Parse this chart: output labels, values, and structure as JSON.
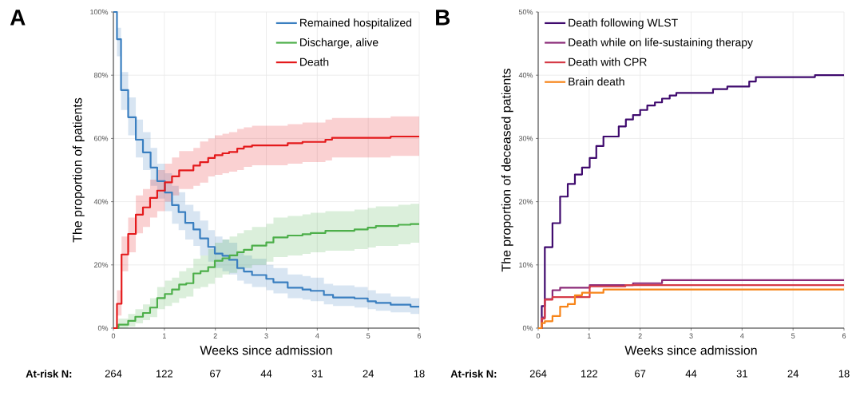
{
  "chart_data": [
    {
      "type": "step",
      "title": "A",
      "xlabel": "Weeks since admission",
      "ylabel": "The proportion of patients",
      "xlim": [
        0,
        6
      ],
      "ylim": [
        0,
        100
      ],
      "xticks": [
        0,
        1,
        2,
        3,
        4,
        5,
        6
      ],
      "yticks": [
        {
          "value": 0,
          "label": "0%"
        },
        {
          "value": 20,
          "label": "20%"
        },
        {
          "value": 40,
          "label": "40%"
        },
        {
          "value": 60,
          "label": "60%"
        },
        {
          "value": 80,
          "label": "80%"
        },
        {
          "value": 100,
          "label": "100%"
        }
      ],
      "grid": true,
      "legend": "top right",
      "marker": "none",
      "line_style": "solid",
      "series": [
        {
          "name": "Remained hospitalized",
          "color": "#3a7fc0",
          "x": [
            0,
            0.07,
            0.15,
            0.29,
            0.44,
            0.58,
            0.73,
            0.86,
            1.01,
            1.15,
            1.28,
            1.41,
            1.57,
            1.7,
            1.86,
            1.99,
            2.14,
            2.27,
            2.43,
            2.56,
            2.72,
            3.0,
            3.14,
            3.42,
            3.71,
            3.87,
            4.13,
            4.31,
            4.73,
            4.99,
            5.15,
            5.44,
            5.83,
            6
          ],
          "values": [
            100,
            91.4,
            75.3,
            66.7,
            59.6,
            55.6,
            50.8,
            46.5,
            42.9,
            38.9,
            36.7,
            33.3,
            31.2,
            28.4,
            25.7,
            23.6,
            22.9,
            21.6,
            19.0,
            17.9,
            16.8,
            15.6,
            14.5,
            12.8,
            12.2,
            11.8,
            10.5,
            9.7,
            9.4,
            8.5,
            8.0,
            7.4,
            6.8,
            6.8
          ],
          "lower": [
            100,
            86,
            69,
            61,
            54,
            50,
            45,
            41,
            37,
            33,
            31,
            28,
            26,
            23,
            21,
            19,
            18,
            17,
            15,
            14,
            13,
            12,
            11,
            9.5,
            9,
            8.5,
            7.5,
            7,
            6.5,
            6,
            5.5,
            5,
            4.5,
            4.5
          ],
          "upper": [
            100,
            95,
            81,
            73,
            66,
            62,
            57,
            52,
            49,
            45,
            43,
            39,
            37,
            34,
            31,
            29,
            28,
            27,
            24,
            23,
            22,
            20,
            19,
            17,
            16.5,
            16,
            14,
            13.5,
            13,
            12,
            11,
            10,
            9.5,
            9.5
          ]
        },
        {
          "name": "Discharge, alive",
          "color": "#4daf4a",
          "x": [
            0,
            0.1,
            0.29,
            0.43,
            0.58,
            0.72,
            0.86,
            1.01,
            1.15,
            1.29,
            1.43,
            1.57,
            1.71,
            1.86,
            1.99,
            2.14,
            2.28,
            2.43,
            2.56,
            2.72,
            3.0,
            3.14,
            3.42,
            3.71,
            3.87,
            4.16,
            4.73,
            4.99,
            5.15,
            5.59,
            5.83,
            6
          ],
          "values": [
            0,
            1.1,
            2.3,
            3.6,
            4.8,
            6.5,
            9.5,
            10.8,
            12.2,
            13.8,
            14.2,
            17.3,
            18.0,
            19.3,
            21.3,
            22.1,
            23.0,
            24.0,
            24.8,
            26.1,
            27.1,
            28.7,
            29.3,
            29.7,
            30.1,
            30.8,
            31.2,
            31.8,
            32.3,
            32.7,
            32.9,
            32.9
          ],
          "lower": [
            0,
            0,
            0.5,
            1.5,
            2.5,
            3.5,
            6,
            7,
            8,
            9.5,
            10,
            12.5,
            13,
            14,
            16,
            17,
            17.5,
            18.5,
            19,
            20,
            21,
            22.5,
            23,
            23.5,
            24,
            24.5,
            25,
            25.5,
            26,
            26.5,
            27,
            27
          ],
          "upper": [
            0,
            3,
            4.5,
            6,
            7.5,
            9.5,
            13,
            15,
            16,
            18,
            19,
            22,
            23,
            25,
            27,
            28,
            29,
            30,
            31,
            32,
            33,
            35,
            35.5,
            36,
            36.5,
            37,
            37.5,
            38,
            38.5,
            39,
            39.3,
            39.3
          ]
        },
        {
          "name": "Death",
          "color": "#e41a1c",
          "x": [
            0,
            0.07,
            0.16,
            0.29,
            0.44,
            0.58,
            0.72,
            0.86,
            1.01,
            1.15,
            1.29,
            1.57,
            1.7,
            1.86,
            1.99,
            2.14,
            2.27,
            2.43,
            2.56,
            2.72,
            3.42,
            3.71,
            4.16,
            4.29,
            5.44,
            6
          ],
          "values": [
            0,
            7.7,
            23.3,
            29.8,
            35.9,
            38.2,
            41.2,
            43.5,
            46.1,
            48.0,
            49.9,
            51.4,
            52.5,
            53.8,
            54.7,
            55.3,
            55.7,
            56.8,
            57.4,
            57.8,
            58.5,
            58.9,
            59.6,
            60.2,
            60.6,
            60.6
          ],
          "lower": [
            0,
            4,
            18,
            24,
            30,
            32,
            35,
            37,
            40,
            42,
            44,
            45,
            46,
            48,
            48.5,
            49,
            49.5,
            50,
            51,
            51.5,
            52,
            52.5,
            53,
            54,
            54.5,
            54.5
          ],
          "upper": [
            0,
            12,
            29,
            35,
            42,
            44,
            47,
            50,
            52,
            54,
            56,
            57,
            59,
            60,
            61,
            61.5,
            62,
            63,
            63.5,
            64,
            64.5,
            65,
            66,
            66.5,
            67,
            67
          ]
        }
      ],
      "annotations": [
        "At-risk N:",
        "264",
        "122",
        "67",
        "44",
        "31",
        "24",
        "18"
      ]
    },
    {
      "type": "step",
      "title": "B",
      "xlabel": "Weeks since admission",
      "ylabel": "The proportion of deceased patients",
      "xlim": [
        0,
        6
      ],
      "ylim": [
        0,
        50
      ],
      "xticks": [
        0,
        1,
        2,
        3,
        4,
        5,
        6
      ],
      "yticks": [
        {
          "value": 0,
          "label": "0%"
        },
        {
          "value": 10,
          "label": "10%"
        },
        {
          "value": 20,
          "label": "20%"
        },
        {
          "value": 30,
          "label": "30%"
        },
        {
          "value": 40,
          "label": "40%"
        },
        {
          "value": 50,
          "label": "50%"
        }
      ],
      "grid": true,
      "legend": "top left",
      "marker": "none",
      "line_style": "solid",
      "series": [
        {
          "name": "Death following WLST",
          "color": "#3f0a6e",
          "x": [
            0,
            0.07,
            0.13,
            0.28,
            0.43,
            0.58,
            0.72,
            0.86,
            1.01,
            1.14,
            1.28,
            1.58,
            1.72,
            1.86,
            2.0,
            2.14,
            2.29,
            2.43,
            2.58,
            2.71,
            3.43,
            3.71,
            4.14,
            4.27,
            5.43,
            6
          ],
          "values": [
            0,
            3.5,
            12.8,
            16.6,
            20.8,
            22.8,
            24.3,
            25.4,
            26.9,
            28.8,
            30.3,
            31.9,
            33.0,
            33.7,
            34.5,
            35.2,
            35.7,
            36.3,
            36.8,
            37.2,
            37.8,
            38.2,
            39.0,
            39.7,
            40.0,
            40.0
          ]
        },
        {
          "name": "Death while on life-sustaining therapy",
          "color": "#8b2a78",
          "x": [
            0,
            0.07,
            0.13,
            0.28,
            0.43,
            1.01,
            1.86,
            2.43,
            6
          ],
          "values": [
            0,
            1.7,
            4.6,
            6.0,
            6.4,
            6.8,
            7.1,
            7.6,
            7.6
          ]
        },
        {
          "name": "Death with CPR",
          "color": "#d63c48",
          "x": [
            0,
            0.07,
            0.13,
            0.28,
            1.01,
            1.71,
            6
          ],
          "values": [
            0,
            1.5,
            4.5,
            4.9,
            6.6,
            6.8,
            6.8
          ]
        },
        {
          "name": "Brain death",
          "color": "#f7851a",
          "x": [
            0,
            0.07,
            0.13,
            0.28,
            0.43,
            0.58,
            0.72,
            0.86,
            1.28,
            6
          ],
          "values": [
            0,
            0.8,
            1.1,
            1.9,
            3.4,
            3.8,
            5.2,
            5.6,
            6.1,
            6.1
          ]
        }
      ],
      "annotations": [
        "At-risk N:",
        "264",
        "122",
        "67",
        "44",
        "31",
        "24",
        "18"
      ]
    }
  ]
}
